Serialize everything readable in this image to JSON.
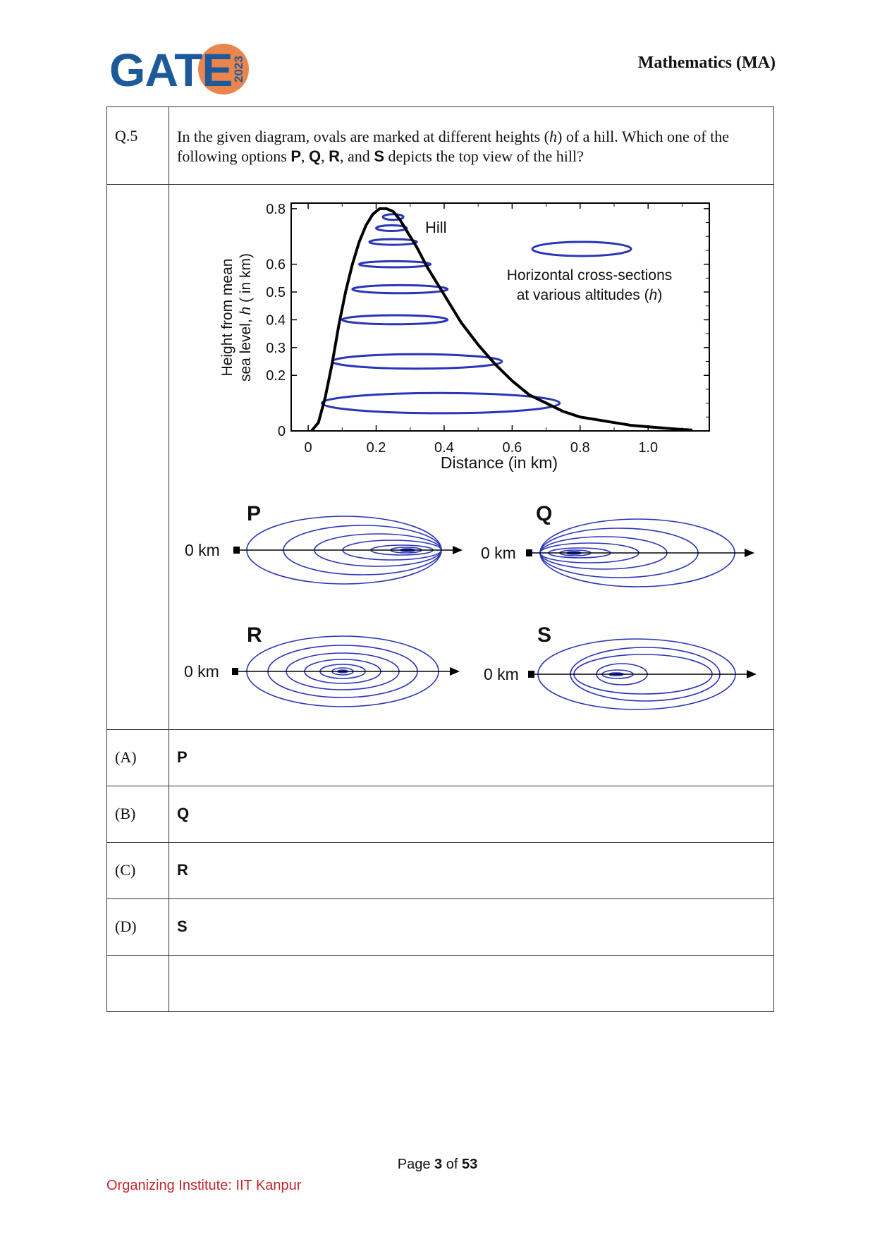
{
  "header": {
    "logo_text": "GATE",
    "logo_year": "2023",
    "subject": "Mathematics (MA)"
  },
  "question": {
    "number": "Q.5",
    "text_part1": "In the given diagram, ovals are marked at different heights (",
    "text_h": "h",
    "text_part2": ") of a hill. Which one of the following options ",
    "opt_p": "P",
    "sep1": ", ",
    "opt_q": "Q",
    "sep2": ", ",
    "opt_r": "R",
    "sep3": ", and ",
    "opt_s": "S",
    "text_part3": " depicts the top view of the hill?"
  },
  "chart": {
    "hill_label": "Hill",
    "legend_line1": "Horizontal cross-sections",
    "legend_line2_a": "at various altitudes (",
    "legend_line2_h": "h",
    "legend_line2_b": ")",
    "ylabel_line1": "Height from mean",
    "ylabel_line2_a": "sea level, ",
    "ylabel_line2_h": "h",
    "ylabel_line2_b": " ( in km)",
    "xlabel": "Distance (in km)",
    "xticks": [
      "0",
      "0.2",
      "0.4",
      "0.6",
      "0.8",
      "1.0"
    ],
    "yticks": [
      "0",
      "0.2",
      "0.3",
      "0.4",
      "0.5",
      "0.6",
      "0.8"
    ]
  },
  "chart_data": {
    "type": "line",
    "title": "",
    "xlabel": "Distance (in km)",
    "ylabel": "Height from mean sea level, h ( in km)",
    "xlim": [
      -0.05,
      1.18
    ],
    "ylim": [
      0,
      0.82
    ],
    "series": [
      {
        "name": "Hill",
        "x": [
          0.01,
          0.03,
          0.05,
          0.07,
          0.09,
          0.11,
          0.13,
          0.15,
          0.17,
          0.19,
          0.21,
          0.23,
          0.25,
          0.27,
          0.29,
          0.32,
          0.35,
          0.4,
          0.45,
          0.5,
          0.55,
          0.6,
          0.65,
          0.7,
          0.75,
          0.8,
          0.85,
          0.9,
          0.95,
          1.0,
          1.05,
          1.1,
          1.13
        ],
        "y": [
          0.0,
          0.03,
          0.12,
          0.24,
          0.38,
          0.5,
          0.6,
          0.68,
          0.74,
          0.78,
          0.8,
          0.8,
          0.79,
          0.76,
          0.72,
          0.66,
          0.59,
          0.49,
          0.39,
          0.31,
          0.24,
          0.18,
          0.13,
          0.1,
          0.07,
          0.05,
          0.04,
          0.03,
          0.02,
          0.015,
          0.01,
          0.005,
          0.003
        ]
      }
    ],
    "cross_sections": [
      {
        "h": 0.1,
        "x_start": 0.04,
        "x_end": 0.74
      },
      {
        "h": 0.25,
        "x_start": 0.07,
        "x_end": 0.57
      },
      {
        "h": 0.4,
        "x_start": 0.1,
        "x_end": 0.41
      },
      {
        "h": 0.51,
        "x_start": 0.13,
        "x_end": 0.41
      },
      {
        "h": 0.6,
        "x_start": 0.15,
        "x_end": 0.36
      },
      {
        "h": 0.68,
        "x_start": 0.18,
        "x_end": 0.32
      },
      {
        "h": 0.73,
        "x_start": 0.2,
        "x_end": 0.29
      },
      {
        "h": 0.77,
        "x_start": 0.22,
        "x_end": 0.28
      }
    ]
  },
  "options_diagram": {
    "zero_label": "0 km",
    "P": "P",
    "Q": "Q",
    "R": "R",
    "S": "S"
  },
  "options": [
    {
      "label": "(A)",
      "value": "P"
    },
    {
      "label": "(B)",
      "value": "Q"
    },
    {
      "label": "(C)",
      "value": "R"
    },
    {
      "label": "(D)",
      "value": "S"
    }
  ],
  "footer": {
    "page_prefix": "Page ",
    "page_current": "3",
    "page_mid": " of ",
    "page_total": "53",
    "organizer": "Organizing Institute: IIT Kanpur"
  },
  "colors": {
    "logo_blue": "#1d5a99",
    "logo_orange": "#e9783a",
    "oval_blue": "#2a35b8",
    "footer_red": "#c0262d"
  }
}
